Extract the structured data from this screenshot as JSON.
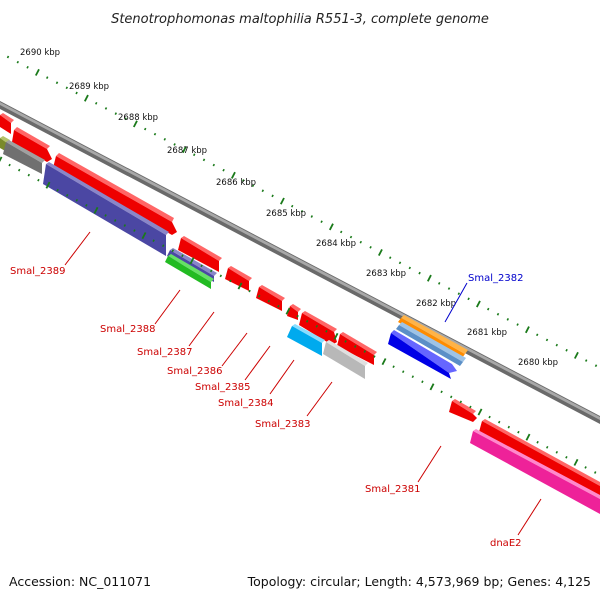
{
  "title": "Stenotrophomonas maltophilia R551-3, complete genome",
  "footer": {
    "accession": "Accession: NC_011071",
    "summary": "Topology: circular; Length: 4,573,969 bp; Genes: 4,125"
  },
  "colors": {
    "label_reverse": "#cc0000",
    "label_forward": "#0000cc",
    "tick": "#1a7a1a",
    "backbone": "#808080"
  },
  "scale_labels": [
    "2690 kbp",
    "2689 kbp",
    "2688 kbp",
    "2687 kbp",
    "2686 kbp",
    "2685 kbp",
    "2684 kbp",
    "2683 kbp",
    "2682 kbp",
    "2681 kbp",
    "2680 kbp"
  ],
  "genes": [
    {
      "label": "Smal_2389",
      "color": "#cc0000"
    },
    {
      "label": "Smal_2388",
      "color": "#cc0000"
    },
    {
      "label": "Smal_2387",
      "color": "#cc0000"
    },
    {
      "label": "Smal_2386",
      "color": "#cc0000"
    },
    {
      "label": "Smal_2385",
      "color": "#cc0000"
    },
    {
      "label": "Smal_2384",
      "color": "#cc0000"
    },
    {
      "label": "Smal_2383",
      "color": "#cc0000"
    },
    {
      "label": "Smal_2382",
      "color": "#0000cc"
    },
    {
      "label": "Smal_2381",
      "color": "#cc0000"
    },
    {
      "label": "dnaE2",
      "color": "#cc0000"
    }
  ]
}
